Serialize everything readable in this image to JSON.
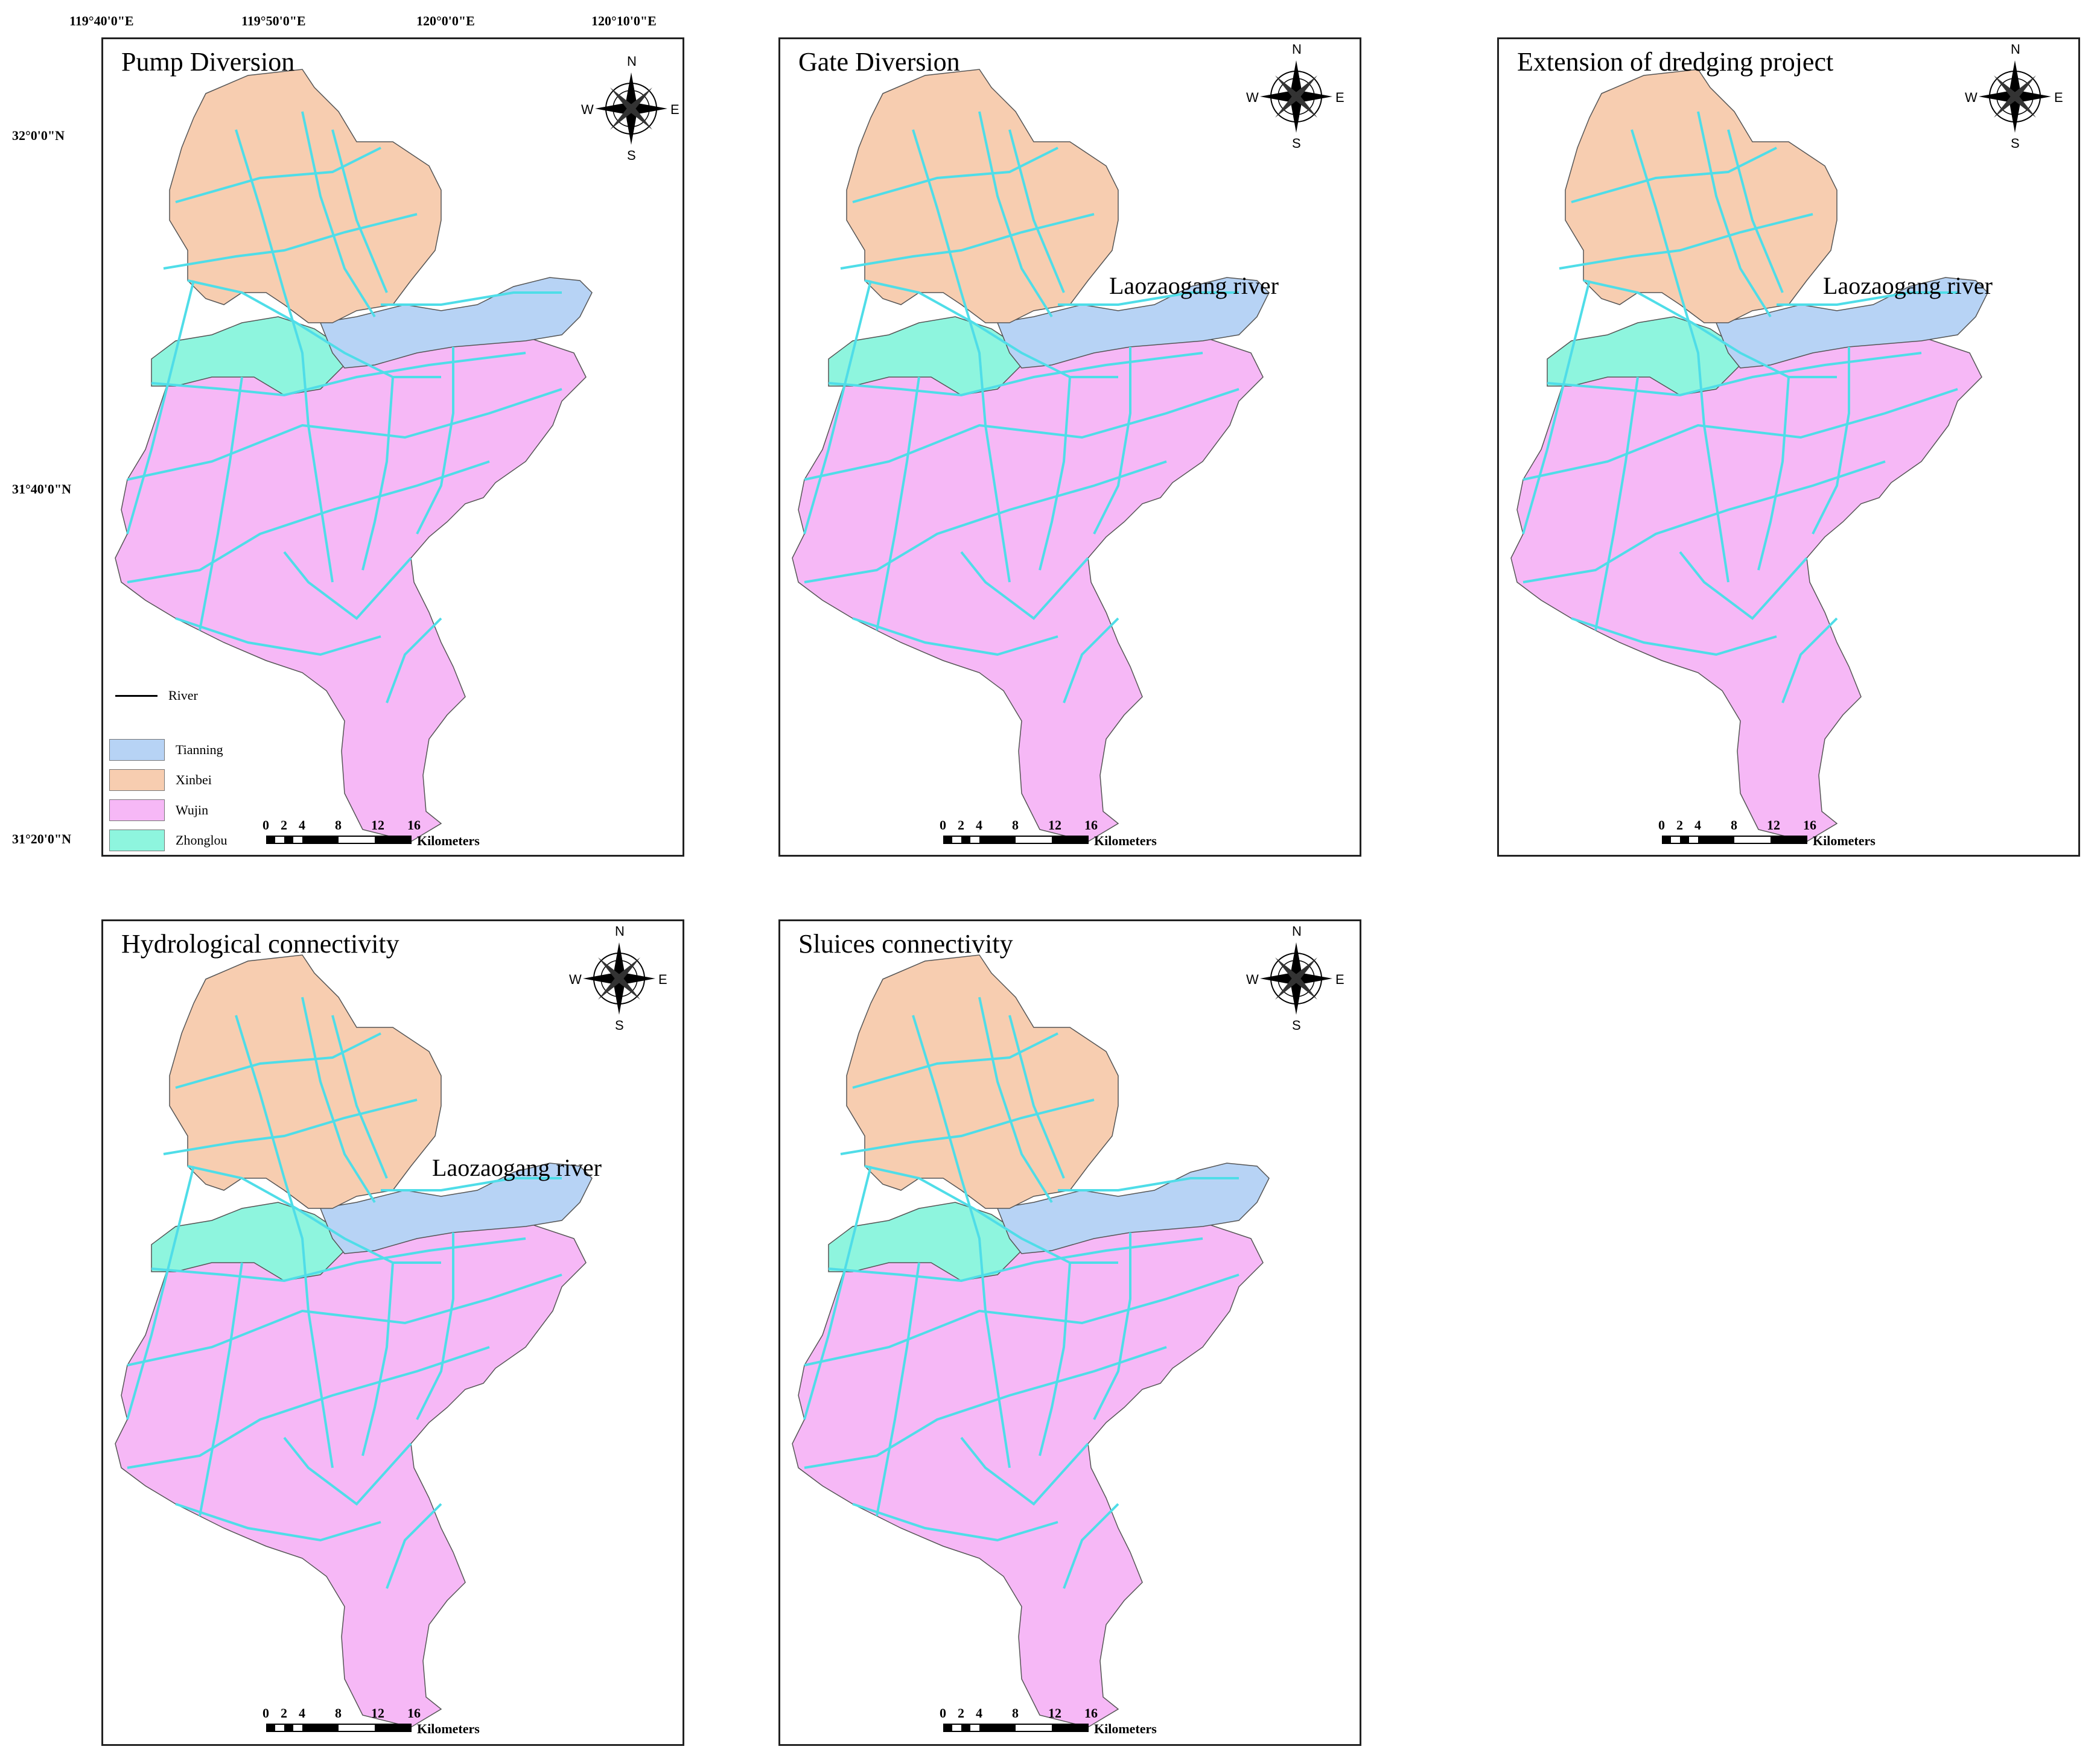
{
  "figure": {
    "coordinates": {
      "lon_labels": [
        "119°40'0\"E",
        "119°50'0\"E",
        "120°0'0\"E",
        "120°10'0\"E"
      ],
      "lat_labels": [
        "32°0'0\"N",
        "31°40'0\"N",
        "31°20'0\"N"
      ]
    },
    "panels": [
      {
        "title": "Pump Diversion",
        "river_label": ""
      },
      {
        "title": "Gate Diversion",
        "river_label": "Laozaogang river"
      },
      {
        "title": "Extension of dredging project",
        "river_label": "Laozaogang river"
      },
      {
        "title": "Hydrological connectivity",
        "river_label": "Laozaogang river"
      },
      {
        "title": "Sluices connectivity",
        "river_label": ""
      }
    ],
    "compass": {
      "n": "N",
      "s": "S",
      "e": "E",
      "w": "W"
    },
    "scale_bar": {
      "ticks": [
        "0",
        "2",
        "4",
        "8",
        "12",
        "16"
      ],
      "unit": "Kilometers"
    },
    "legend": {
      "line_items": [
        {
          "label": "River",
          "color": "#000000"
        }
      ],
      "region_items": [
        {
          "label": "Tianning",
          "color": "#b7d3f5"
        },
        {
          "label": "Xinbei",
          "color": "#f7cdb0"
        },
        {
          "label": "Wujin",
          "color": "#f6b8f6"
        },
        {
          "label": "Zhonglou",
          "color": "#8ef5de"
        }
      ]
    },
    "colors": {
      "channels": "#4fdde8",
      "rivers": "#000000",
      "highlight_box": "#e53b2e"
    }
  }
}
